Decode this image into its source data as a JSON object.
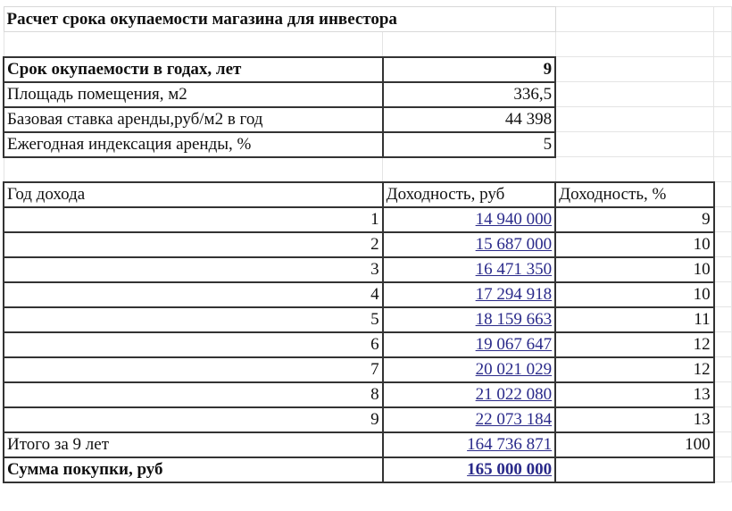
{
  "title": "Расчет срока окупаемости магазина для инвестора",
  "params": [
    {
      "label": "Срок окупаемости в годах, лет",
      "value": "9",
      "bold": true
    },
    {
      "label": "Площадь помещения, м2",
      "value": "336,5"
    },
    {
      "label": "Базовая ставка аренды,руб/м2 в год",
      "value": "44 398"
    },
    {
      "label": "Ежегодная индексация аренды, %",
      "value": "5"
    }
  ],
  "headers": [
    "Год дохода",
    "Доходность, руб",
    "Доходность, %"
  ],
  "rows": [
    {
      "year": "1",
      "income": "14 940 000",
      "pct": "9"
    },
    {
      "year": "2",
      "income": "15 687 000",
      "pct": "10"
    },
    {
      "year": "3",
      "income": "16 471 350",
      "pct": "10"
    },
    {
      "year": "4",
      "income": "17 294 918",
      "pct": "10"
    },
    {
      "year": "5",
      "income": "18 159 663",
      "pct": "11"
    },
    {
      "year": "6",
      "income": "19 067 647",
      "pct": "12"
    },
    {
      "year": "7",
      "income": "20 021 029",
      "pct": "12"
    },
    {
      "year": "8",
      "income": "21 022 080",
      "pct": "13"
    },
    {
      "year": "9",
      "income": "22 073 184",
      "pct": "13"
    }
  ],
  "total": {
    "label": "Итого за 9 лет",
    "income": "164 736 871",
    "pct": "100"
  },
  "purchase": {
    "label": "Сумма покупки, руб",
    "value": "165 000 000"
  },
  "colors": {
    "link": "#2a2a8a",
    "border": "#333333",
    "grid": "#d8d8d8"
  }
}
